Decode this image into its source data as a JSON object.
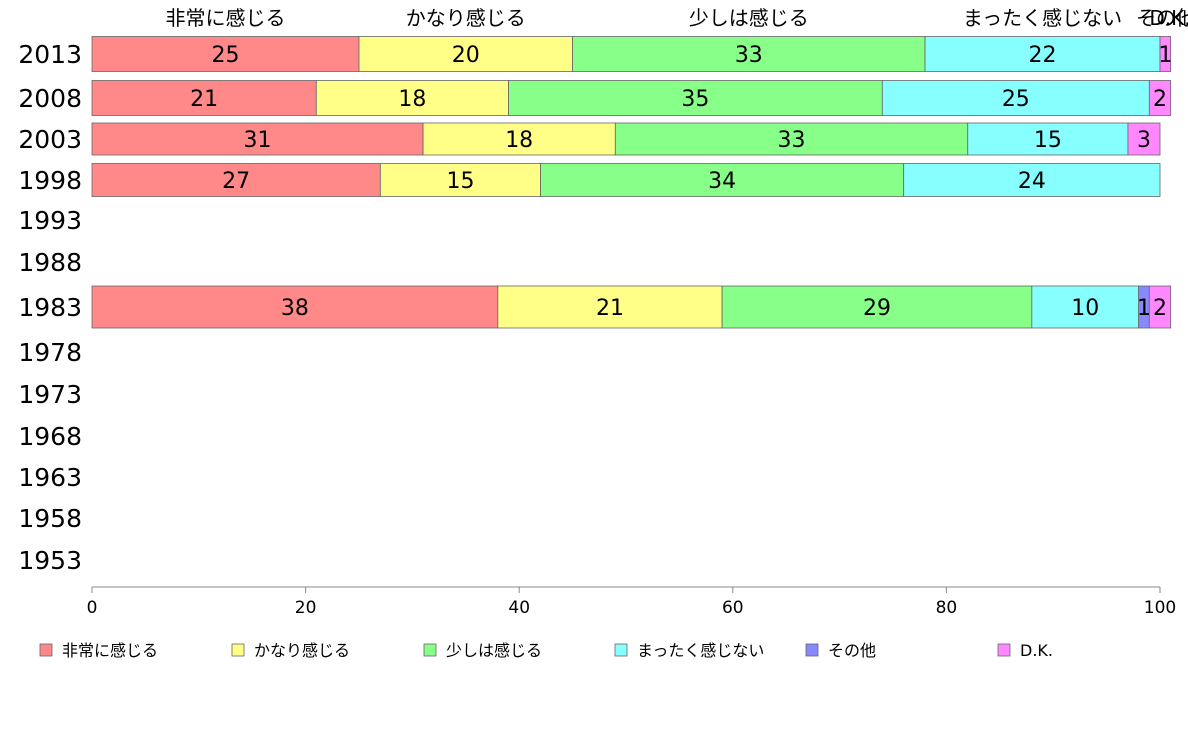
{
  "chart_data": {
    "type": "bar",
    "orientation": "horizontal",
    "stacked": true,
    "categories": [
      "2013",
      "2008",
      "2003",
      "1998",
      "1993",
      "1988",
      "1983",
      "1978",
      "1973",
      "1968",
      "1963",
      "1958",
      "1953"
    ],
    "series": [
      {
        "name": "非常に感じる",
        "color": "#ff8888",
        "values": [
          25,
          21,
          31,
          27,
          null,
          null,
          38,
          null,
          null,
          null,
          null,
          null,
          null
        ]
      },
      {
        "name": "かなり感じる",
        "color": "#ffff88",
        "values": [
          20,
          18,
          18,
          15,
          null,
          null,
          21,
          null,
          null,
          null,
          null,
          null,
          null
        ]
      },
      {
        "name": "少しは感じる",
        "color": "#88ff88",
        "values": [
          33,
          35,
          33,
          34,
          null,
          null,
          29,
          null,
          null,
          null,
          null,
          null,
          null
        ]
      },
      {
        "name": "まったく感じない",
        "color": "#88ffff",
        "values": [
          22,
          25,
          15,
          24,
          null,
          null,
          10,
          null,
          null,
          null,
          null,
          null,
          null
        ]
      },
      {
        "name": "その他",
        "color": "#8888ff",
        "values": [
          0,
          0,
          0,
          0,
          null,
          null,
          1,
          null,
          null,
          null,
          null,
          null,
          null
        ]
      },
      {
        "name": "D.K.",
        "color": "#ff88ff",
        "values": [
          1,
          2,
          3,
          0,
          null,
          null,
          2,
          null,
          null,
          null,
          null,
          null,
          null
        ]
      }
    ],
    "top_labels": [
      "非常に感じる",
      "かなり感じる",
      "少しは感じる",
      "まったく感じない",
      "その他",
      "D.K."
    ],
    "xlim": [
      0,
      100
    ],
    "xticks": [
      0,
      20,
      40,
      60,
      80,
      100
    ],
    "legend_position": "bottom",
    "grid": false
  }
}
